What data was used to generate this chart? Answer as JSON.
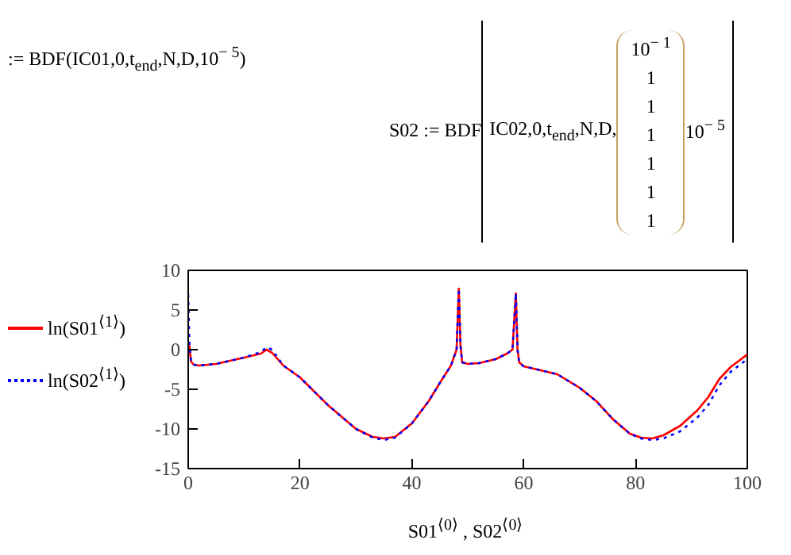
{
  "chart_data": {
    "type": "line",
    "annotations": [
      ":= BDF(IC01,0,t$_{end}$,N,D,10$^{− 5}$)",
      "S02 := BDF",
      "IC02,0,t$_{end}$,N,D,",
      "10$^{− 1}$",
      "1",
      "1",
      "1",
      "1",
      "1",
      "1",
      "10$^{− 5}$"
    ],
    "xlabel": "S01$^{⟨0⟩}$ , S02$^{⟨0⟩}$",
    "xlim": [
      0,
      100
    ],
    "xticks": [
      0,
      20,
      40,
      60,
      80,
      100
    ],
    "ylim": [
      -15,
      10
    ],
    "yticks": [
      -15,
      -10,
      -5,
      0,
      5,
      10
    ],
    "grid": false,
    "legend": "left",
    "series": [
      {
        "name": "ln(S01$^{⟨1⟩}$)",
        "color": "#ff0000",
        "line_style": "solid",
        "x": [
          0,
          0.2,
          0.5,
          1,
          2,
          5,
          10,
          13,
          14,
          15,
          17,
          20,
          25,
          30,
          33,
          35,
          37,
          40,
          43,
          45,
          47,
          48,
          48.4,
          48.7,
          49,
          50,
          52,
          55,
          57,
          58,
          58.6,
          58.9,
          59.2,
          60,
          63,
          66,
          70,
          73,
          76,
          79,
          81,
          83,
          85,
          88,
          91,
          93,
          95,
          97,
          100
        ],
        "values": [
          1,
          0.5,
          -1.5,
          -1.9,
          -2,
          -1.8,
          -1,
          -0.5,
          0,
          -0.4,
          -2,
          -3.5,
          -7,
          -10,
          -11,
          -11.2,
          -11,
          -9.3,
          -6.5,
          -4.2,
          -2,
          0,
          7.7,
          0.5,
          -1.6,
          -1.8,
          -1.7,
          -1.2,
          -0.5,
          0,
          7.1,
          0,
          -1.6,
          -2.1,
          -2.6,
          -3.1,
          -4.8,
          -6.5,
          -8.8,
          -10.6,
          -11.1,
          -11.2,
          -10.8,
          -9.6,
          -7.7,
          -6,
          -3.7,
          -2.2,
          -0.6
        ]
      },
      {
        "name": "ln(S02$^{⟨1⟩}$)",
        "color": "#0000ff",
        "line_style": "dotted",
        "x": [
          0,
          0.2,
          0.5,
          1,
          2,
          5,
          10,
          13,
          14,
          15,
          17,
          20,
          25,
          30,
          33,
          35,
          37,
          40,
          43,
          45,
          47,
          48,
          48.4,
          48.7,
          49,
          50,
          52,
          55,
          57,
          58,
          58.6,
          58.9,
          59.2,
          60,
          63,
          66,
          70,
          73,
          76,
          79,
          81,
          83,
          85,
          88,
          91,
          93,
          95,
          97,
          100
        ],
        "values": [
          7,
          1,
          -1.5,
          -1.9,
          -2,
          -1.8,
          -1,
          -0.3,
          0.3,
          0,
          -2,
          -3.5,
          -7,
          -10,
          -11.1,
          -11.4,
          -11.1,
          -9.3,
          -6.5,
          -4.2,
          -2,
          0,
          7.7,
          0.5,
          -1.6,
          -1.8,
          -1.7,
          -1.2,
          -0.5,
          0,
          7.1,
          0,
          -1.6,
          -2.1,
          -2.6,
          -3.1,
          -4.8,
          -6.5,
          -8.8,
          -10.6,
          -11.2,
          -11.4,
          -11.2,
          -10.3,
          -8.6,
          -7,
          -4.5,
          -2.8,
          -1.2
        ]
      }
    ]
  }
}
